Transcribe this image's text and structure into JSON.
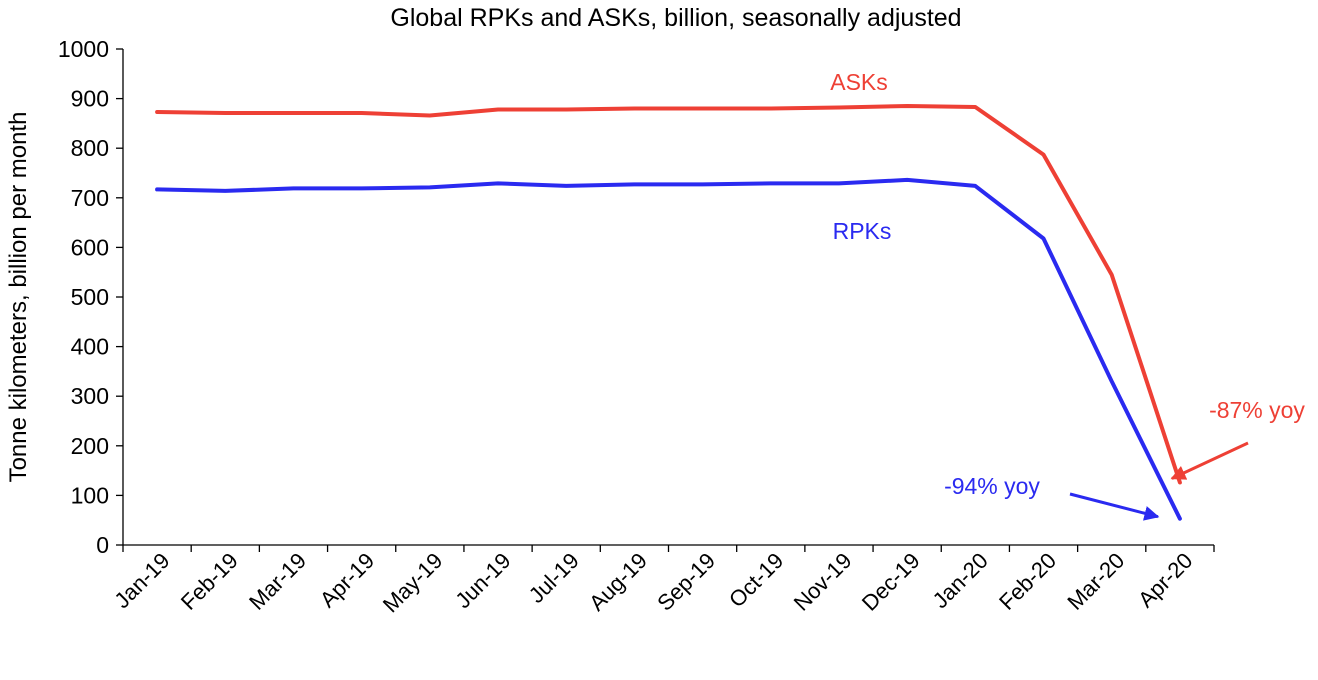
{
  "chart_data": {
    "type": "line",
    "title": "Global RPKs and ASKs, billion, seasonally adjusted",
    "xlabel": "",
    "ylabel": "Tonne kilometers, billion per month",
    "ylim": [
      0,
      1000
    ],
    "yticks": [
      0,
      100,
      200,
      300,
      400,
      500,
      600,
      700,
      800,
      900,
      1000
    ],
    "categories": [
      "Jan-19",
      "Feb-19",
      "Mar-19",
      "Apr-19",
      "May-19",
      "Jun-19",
      "Jul-19",
      "Aug-19",
      "Sep-19",
      "Oct-19",
      "Nov-19",
      "Dec-19",
      "Jan-20",
      "Feb-20",
      "Mar-20",
      "Apr-20"
    ],
    "series": [
      {
        "name": "ASKs",
        "color": "#ee4035",
        "values": [
          873,
          871,
          871,
          871,
          866,
          878,
          878,
          880,
          880,
          880,
          882,
          885,
          883,
          787,
          545,
          126
        ]
      },
      {
        "name": "RPKs",
        "color": "#2a2af0",
        "values": [
          717,
          714,
          719,
          719,
          721,
          729,
          724,
          727,
          727,
          729,
          729,
          736,
          724,
          618,
          330,
          53
        ]
      }
    ],
    "annotations": [
      {
        "text": "-87% yoy",
        "series": "ASKs",
        "color": "#ee4035"
      },
      {
        "text": "-94% yoy",
        "series": "RPKs",
        "color": "#2a2af0"
      }
    ],
    "grid": false,
    "legend": "inline"
  }
}
